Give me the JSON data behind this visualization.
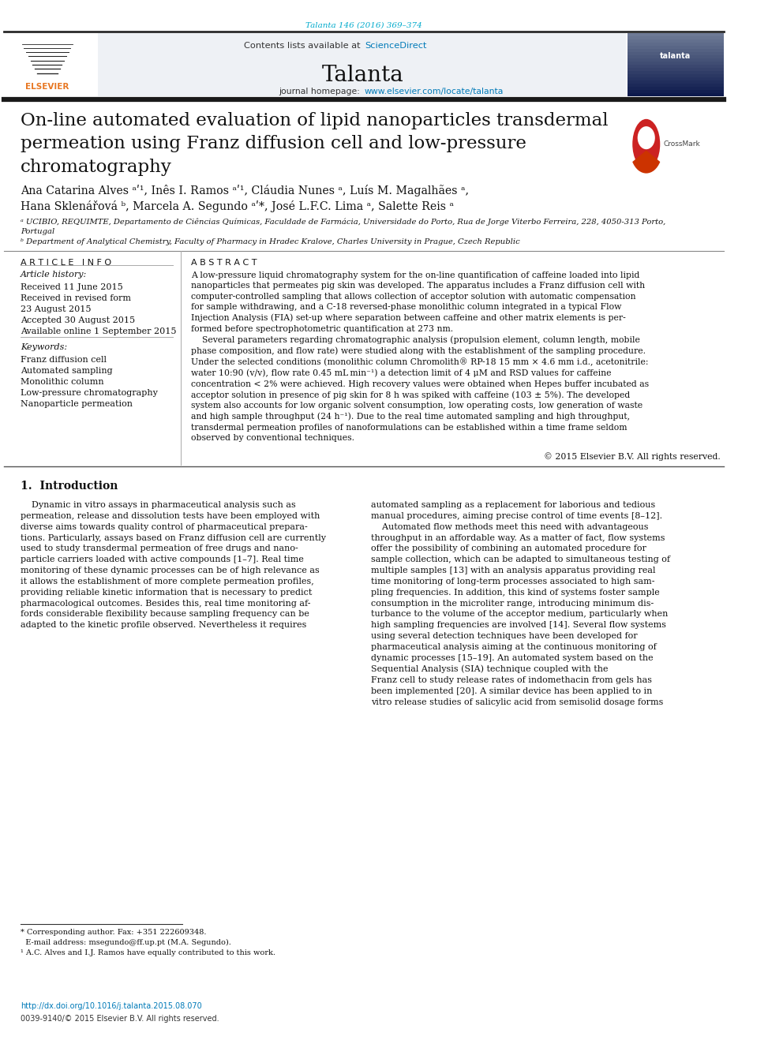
{
  "page_width": 9.92,
  "page_height": 13.23,
  "bg_color": "#ffffff",
  "journal_ref_color": "#00aacc",
  "journal_ref": "Talanta 146 (2016) 369–374",
  "header_link_color": "#007ab8",
  "journal_homepage_link_color": "#007ab8",
  "top_rule_color": "#2a2a2a",
  "title": "On-line automated evaluation of lipid nanoparticles transdermal\npermeation using Franz diffusion cell and low-pressure\nchromatography",
  "article_info_header": "A R T I C L E   I N F O",
  "article_history_label": "Article history:",
  "article_history": "Received 11 June 2015\nReceived in revised form\n23 August 2015\nAccepted 30 August 2015\nAvailable online 1 September 2015",
  "keywords_label": "Keywords:",
  "keywords": "Franz diffusion cell\nAutomated sampling\nMonolithic column\nLow-pressure chromatography\nNanoparticle permeation",
  "abstract_header": "A B S T R A C T",
  "copyright": "© 2015 Elsevier B.V. All rights reserved.",
  "intro_header": "1.  Introduction",
  "doi_text": "http://dx.doi.org/10.1016/j.talanta.2015.08.070",
  "issn_text": "0039-9140/© 2015 Elsevier B.V. All rights reserved.",
  "doi_color": "#007ab8",
  "footnote_rule_color": "#333333"
}
